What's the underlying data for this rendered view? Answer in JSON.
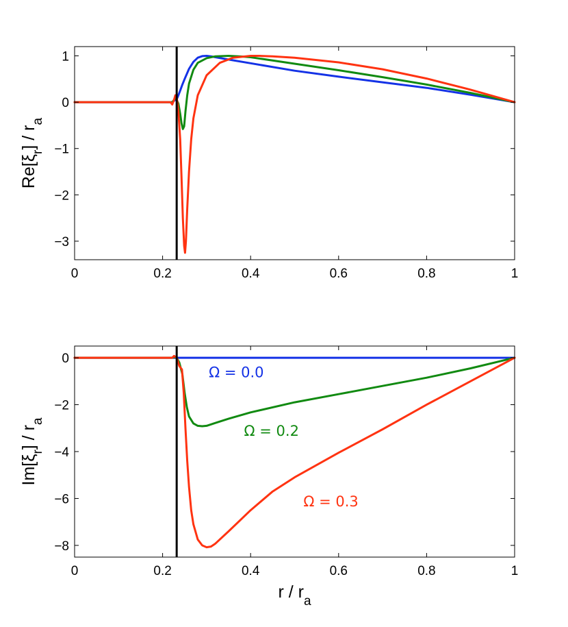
{
  "colors": {
    "blue": "#1432e6",
    "green": "#118a11",
    "red": "#ff3311",
    "axis": "#000000"
  },
  "chart_data": [
    {
      "type": "line",
      "panel": "top",
      "title": "",
      "xlabel": "",
      "ylabel_main": "Re[ξ",
      "ylabel_sub": "r",
      "ylabel_tail": "] / r",
      "ylabel_sub2": "a",
      "xlim": [
        0,
        1
      ],
      "ylim": [
        -3.4,
        1.2
      ],
      "xticks": [
        0,
        0.2,
        0.4,
        0.6,
        0.8,
        1
      ],
      "xtick_labels": [
        "0",
        "0.2",
        "0.4",
        "0.6",
        "0.8",
        "1"
      ],
      "yticks": [
        1,
        0,
        -1,
        -2,
        -3
      ],
      "ytick_labels": [
        "1",
        "0",
        "−1",
        "−2",
        "−3"
      ],
      "vline_x": 0.232,
      "series": [
        {
          "name": "Ω = 0.0",
          "color": "blue",
          "x": [
            0,
            0.222,
            0.226,
            0.229,
            0.232,
            0.236,
            0.24,
            0.245,
            0.25,
            0.26,
            0.27,
            0.28,
            0.29,
            0.3,
            0.31,
            0.32,
            0.35,
            0.4,
            0.5,
            0.6,
            0.7,
            0.8,
            0.9,
            1.0
          ],
          "y": [
            0,
            0,
            0.03,
            0.05,
            0.06,
            0.15,
            0.25,
            0.38,
            0.5,
            0.72,
            0.87,
            0.96,
            0.995,
            1.0,
            0.99,
            0.97,
            0.92,
            0.84,
            0.68,
            0.55,
            0.43,
            0.31,
            0.16,
            0
          ]
        },
        {
          "name": "Ω = 0.2",
          "color": "green",
          "x": [
            0,
            0.222,
            0.226,
            0.229,
            0.232,
            0.236,
            0.24,
            0.243,
            0.246,
            0.249,
            0.252,
            0.256,
            0.26,
            0.27,
            0.28,
            0.3,
            0.32,
            0.35,
            0.38,
            0.4,
            0.5,
            0.6,
            0.7,
            0.8,
            0.9,
            1.0
          ],
          "y": [
            0,
            0,
            0.05,
            0.1,
            0.05,
            -0.03,
            -0.25,
            -0.45,
            -0.58,
            -0.52,
            -0.2,
            0.15,
            0.4,
            0.7,
            0.85,
            0.95,
            0.99,
            1.0,
            0.985,
            0.97,
            0.83,
            0.69,
            0.54,
            0.38,
            0.2,
            0
          ]
        },
        {
          "name": "Ω = 0.3",
          "color": "red",
          "x": [
            0,
            0.218,
            0.222,
            0.226,
            0.229,
            0.232,
            0.236,
            0.24,
            0.243,
            0.246,
            0.249,
            0.251,
            0.253,
            0.256,
            0.26,
            0.265,
            0.27,
            0.28,
            0.3,
            0.33,
            0.36,
            0.4,
            0.42,
            0.45,
            0.5,
            0.6,
            0.7,
            0.8,
            0.9,
            1.0
          ],
          "y": [
            0,
            0,
            -0.05,
            0.05,
            0.15,
            0.1,
            -0.2,
            -0.8,
            -1.6,
            -2.5,
            -3.1,
            -3.25,
            -3.0,
            -2.3,
            -1.5,
            -0.8,
            -0.35,
            0.15,
            0.58,
            0.85,
            0.96,
            1.0,
            1.0,
            0.99,
            0.96,
            0.86,
            0.71,
            0.51,
            0.27,
            0
          ]
        }
      ]
    },
    {
      "type": "line",
      "panel": "bottom",
      "title": "",
      "xlabel_main": "r / r",
      "xlabel_sub": "a",
      "ylabel_main": "Im[ξ",
      "ylabel_sub": "r",
      "ylabel_tail": "] / r",
      "ylabel_sub2": "a",
      "xlim": [
        0,
        1
      ],
      "ylim": [
        -8.5,
        0.5
      ],
      "xticks": [
        0,
        0.2,
        0.4,
        0.6,
        0.8,
        1
      ],
      "xtick_labels": [
        "0",
        "0.2",
        "0.4",
        "0.6",
        "0.8",
        "1"
      ],
      "yticks": [
        0,
        -2,
        -4,
        -6,
        -8
      ],
      "ytick_labels": [
        "0",
        "−2",
        "−4",
        "−6",
        "−8"
      ],
      "vline_x": 0.232,
      "annotations": [
        {
          "text": "Ω = 0.0",
          "color": "blue",
          "x": 0.305,
          "y": -0.6
        },
        {
          "text": "Ω = 0.2",
          "color": "green",
          "x": 0.385,
          "y": -3.1
        },
        {
          "text": "Ω = 0.3",
          "color": "red",
          "x": 0.52,
          "y": -6.1
        }
      ],
      "series": [
        {
          "name": "Ω = 0.0",
          "color": "blue",
          "x": [
            0,
            1.0
          ],
          "y": [
            0,
            0
          ]
        },
        {
          "name": "Ω = 0.2",
          "color": "green",
          "x": [
            0,
            0.222,
            0.226,
            0.232,
            0.238,
            0.245,
            0.25,
            0.255,
            0.26,
            0.27,
            0.28,
            0.29,
            0.3,
            0.32,
            0.35,
            0.4,
            0.5,
            0.6,
            0.7,
            0.8,
            0.9,
            1.0
          ],
          "y": [
            0,
            0,
            0.03,
            0,
            -0.2,
            -0.7,
            -1.5,
            -2.1,
            -2.5,
            -2.8,
            -2.9,
            -2.92,
            -2.9,
            -2.78,
            -2.6,
            -2.33,
            -1.9,
            -1.55,
            -1.2,
            -0.85,
            -0.45,
            0
          ]
        },
        {
          "name": "Ω = 0.3",
          "color": "red",
          "x": [
            0,
            0.222,
            0.226,
            0.232,
            0.238,
            0.244,
            0.248,
            0.252,
            0.256,
            0.26,
            0.265,
            0.27,
            0.28,
            0.29,
            0.3,
            0.31,
            0.32,
            0.35,
            0.4,
            0.45,
            0.5,
            0.6,
            0.7,
            0.8,
            0.9,
            1.0
          ],
          "y": [
            0,
            0,
            0.08,
            0,
            -0.35,
            -0.5,
            -1.5,
            -3.0,
            -4.4,
            -5.5,
            -6.5,
            -7.1,
            -7.75,
            -8.0,
            -8.08,
            -8.05,
            -7.92,
            -7.4,
            -6.5,
            -5.7,
            -5.1,
            -4.05,
            -3.05,
            -2.0,
            -1.0,
            0
          ]
        }
      ]
    }
  ]
}
